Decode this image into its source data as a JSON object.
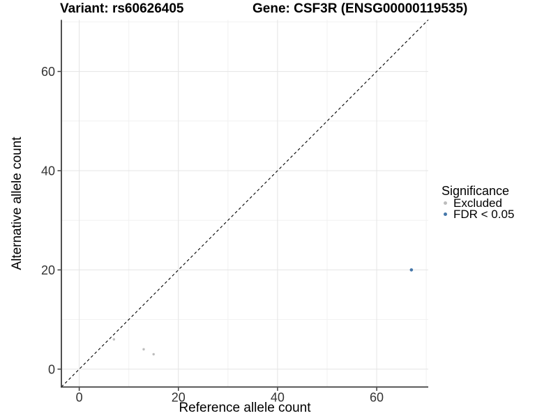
{
  "header": {
    "variant_title": "Variant: rs60626405",
    "gene_title": "Gene: CSF3R (ENSG00000119535)"
  },
  "chart_data": {
    "type": "scatter",
    "xlabel": "Reference allele count",
    "ylabel": "Alternative allele count",
    "xlim": [
      -3.6,
      70.4
    ],
    "ylim": [
      -3.6,
      70.4
    ],
    "xticks": [
      0,
      20,
      40,
      60
    ],
    "yticks": [
      0,
      20,
      40,
      60
    ],
    "xminor": [
      10,
      30,
      50,
      70
    ],
    "yminor": [
      10,
      30,
      50,
      70
    ],
    "grid": "major+minor",
    "identity_line": {
      "type": "abline",
      "slope": 1,
      "intercept": 0,
      "style": "dashed",
      "color": "#000000"
    },
    "series": [
      {
        "name": "Excluded",
        "color": "#bdbdbd",
        "point_radius": 1.7,
        "points": [
          [
            7,
            6
          ],
          [
            13,
            4
          ],
          [
            15,
            3
          ]
        ]
      },
      {
        "name": "FDR < 0.05",
        "color": "#4577a9",
        "point_radius": 2.3,
        "points": [
          [
            67,
            20
          ]
        ]
      }
    ],
    "legend": {
      "title": "Significance",
      "position": "right",
      "entries": [
        {
          "label": "Excluded",
          "color": "#bdbdbd"
        },
        {
          "label": "FDR < 0.05",
          "color": "#4577a9"
        }
      ]
    }
  },
  "style": {
    "background": "#ffffff",
    "grid_major_color": "#e4e4e4",
    "grid_minor_color": "#f1f1f1",
    "axis_line_color": "#3c3c3c",
    "tick_label_color": "#333333"
  }
}
